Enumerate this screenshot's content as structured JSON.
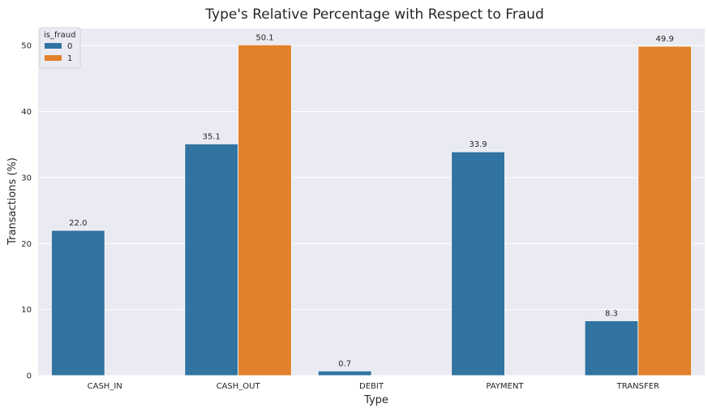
{
  "chart_data": {
    "type": "bar",
    "title": "Type's Relative Percentage with Respect to Fraud",
    "xlabel": "Type",
    "ylabel": "Transactions (%)",
    "categories": [
      "CASH_IN",
      "CASH_OUT",
      "DEBIT",
      "PAYMENT",
      "TRANSFER"
    ],
    "series": [
      {
        "name": "0",
        "color": "#3274a1",
        "values": [
          22.0,
          35.1,
          0.7,
          33.9,
          8.3
        ],
        "labels": [
          "22.0",
          "35.1",
          "0.7",
          "33.9",
          "8.3"
        ]
      },
      {
        "name": "1",
        "color": "#e1812c",
        "values": [
          0,
          50.1,
          0,
          0,
          49.9
        ],
        "labels": [
          "",
          "50.1",
          "",
          "",
          "49.9"
        ]
      }
    ],
    "ylim": [
      0,
      52.6
    ],
    "yticks": [
      0,
      10,
      20,
      30,
      40,
      50
    ],
    "legend": {
      "title": "is_fraud",
      "position": "top-left"
    },
    "grid": true,
    "background": "#eaeaf2"
  }
}
